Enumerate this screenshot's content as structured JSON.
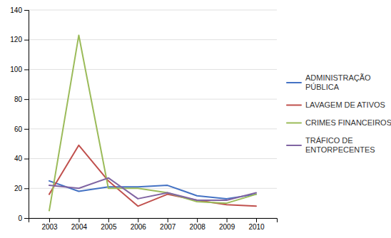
{
  "chart_data": {
    "type": "line",
    "x": [
      2003,
      2004,
      2005,
      2006,
      2007,
      2008,
      2009,
      2010
    ],
    "series": [
      {
        "name": "ADMINISTRAÇÃO\nPÚBLICA",
        "color": "#4472C4",
        "values": [
          25,
          18,
          21,
          21,
          22,
          15,
          13,
          16
        ]
      },
      {
        "name": "LAVAGEM DE ATIVOS",
        "color": "#C0504D",
        "values": [
          16,
          49,
          25,
          8,
          16,
          12,
          9,
          8
        ]
      },
      {
        "name": "CRIMES FINANCEIROS",
        "color": "#9BBB59",
        "values": [
          5,
          123,
          20,
          20,
          17,
          11,
          10,
          16
        ]
      },
      {
        "name": "TRÁFICO DE\nENTORPECENTES",
        "color": "#8064A2",
        "values": [
          22,
          20,
          27,
          13,
          17,
          12,
          12,
          17
        ]
      }
    ],
    "xlim": [
      2002.3,
      2010.7
    ],
    "xticks": [
      2003,
      2004,
      2005,
      2006,
      2007,
      2008,
      2009,
      2010
    ],
    "ylim": [
      0,
      140
    ],
    "yticks": [
      0,
      20,
      40,
      60,
      80,
      100,
      120,
      140
    ],
    "grid": true,
    "legend": "right"
  }
}
